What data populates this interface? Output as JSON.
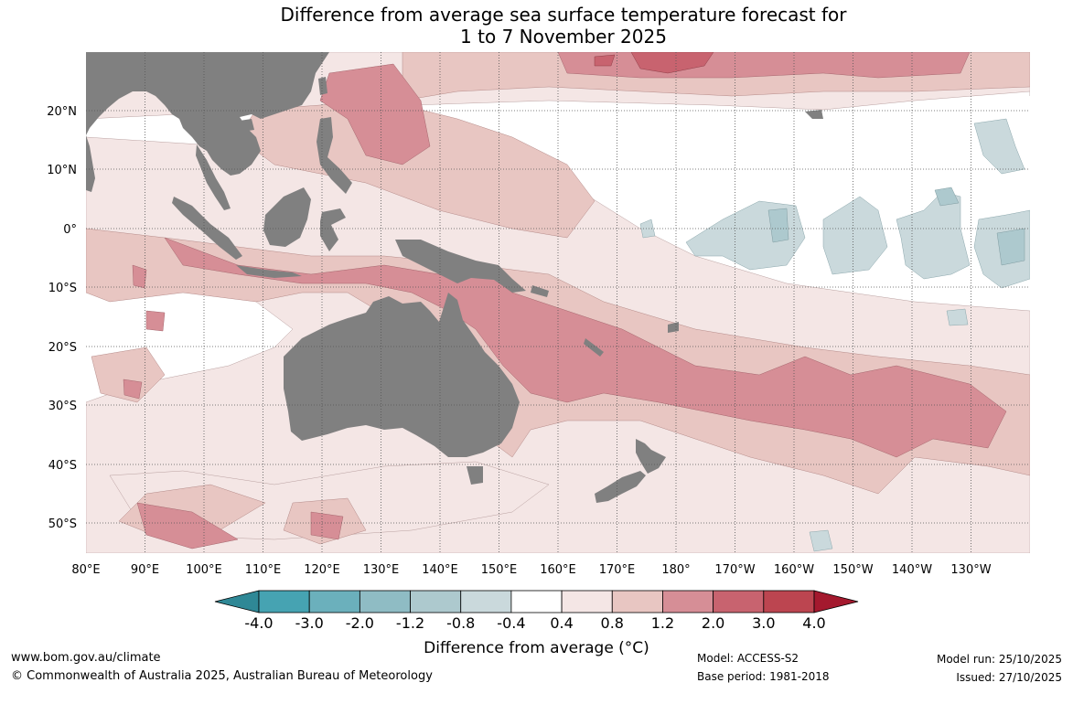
{
  "title": {
    "line1": "Difference from average sea surface temperature forecast for",
    "line2": "1 to 7 November 2025"
  },
  "map": {
    "lat_labels": [
      "20°N",
      "10°N",
      "0°",
      "10°S",
      "20°S",
      "30°S",
      "40°S",
      "50°S"
    ],
    "lon_labels": [
      "80°E",
      "90°E",
      "100°E",
      "110°E",
      "120°E",
      "130°E",
      "140°E",
      "150°E",
      "160°E",
      "170°E",
      "180°",
      "170°W",
      "160°W",
      "150°W",
      "140°W",
      "130°W"
    ],
    "colors": {
      "land": "#808080",
      "grid": "#555555"
    }
  },
  "colorbar": {
    "ticks": [
      "-4.0",
      "-3.0",
      "-2.0",
      "-1.2",
      "-0.8",
      "-0.4",
      "0.4",
      "0.8",
      "1.2",
      "2.0",
      "3.0",
      "4.0"
    ],
    "colors": [
      "#2f8896",
      "#46a3b2",
      "#6bb0bc",
      "#8fbcc4",
      "#adc9ce",
      "#cad9dc",
      "#ffffff",
      "#f4e6e5",
      "#e8c6c2",
      "#d68e96",
      "#c8636f",
      "#bc4550",
      "#a4192e"
    ],
    "label": "Difference from average (°C)"
  },
  "footer": {
    "website": "www.bom.gov.au/climate",
    "copyright": "© Commonwealth of Australia 2025, Australian Bureau of Meteorology",
    "model": "Model: ACCESS-S2",
    "base_period": "Base period: 1981-2018",
    "model_run": "Model run: 25/10/2025",
    "issued": "Issued: 27/10/2025"
  }
}
